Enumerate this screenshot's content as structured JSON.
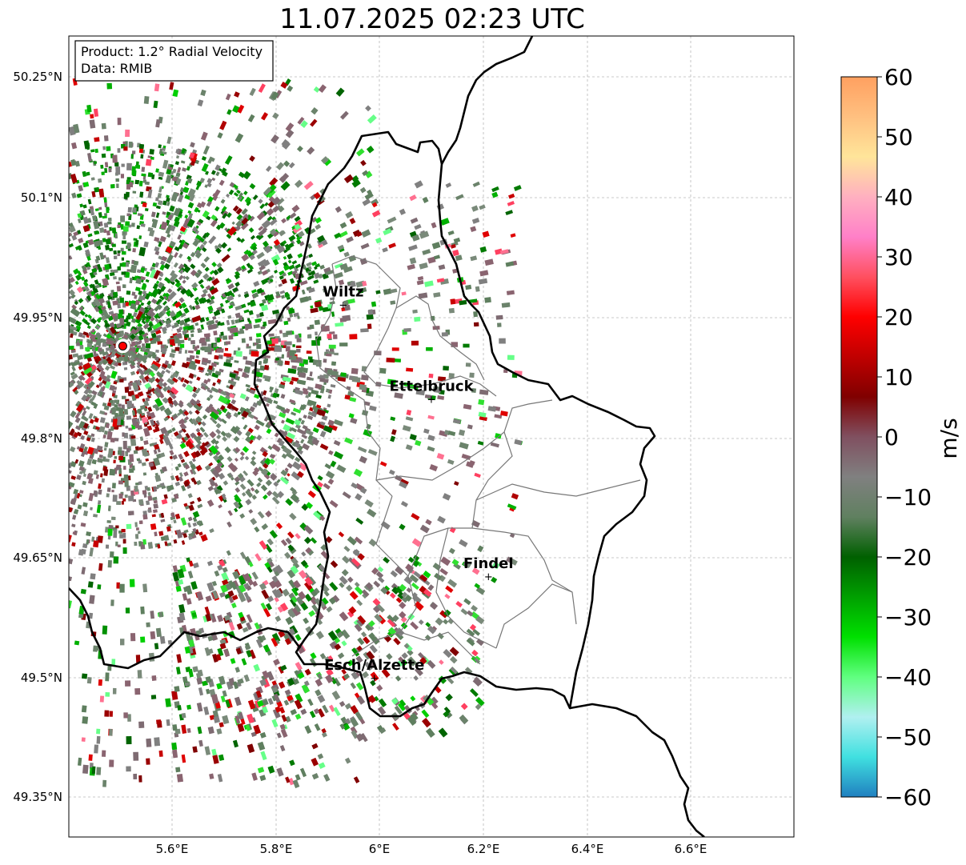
{
  "title": "11.07.2025 02:23 UTC",
  "info": {
    "product": "Product: 1.2° Radial Velocity",
    "source": "Data: RMIB"
  },
  "axes": {
    "lon_ticks": [
      "5.6°E",
      "5.8°E",
      "6°E",
      "6.2°E",
      "6.4°E",
      "6.6°E"
    ],
    "lat_ticks": [
      "50.25°N",
      "50.1°N",
      "49.95°N",
      "49.8°N",
      "49.65°N",
      "49.5°N",
      "49.35°N"
    ]
  },
  "cities": [
    {
      "name": "Wiltz",
      "lon": 5.93,
      "lat": 49.966
    },
    {
      "name": "Ettelbruck",
      "lon": 6.1,
      "lat": 49.848
    },
    {
      "name": "Findel",
      "lon": 6.21,
      "lat": 49.627
    },
    {
      "name": "Esch/Alzette",
      "lon": 5.99,
      "lat": 49.5
    }
  ],
  "radar_site": {
    "lon": 5.505,
    "lat": 49.914
  },
  "colorbar": {
    "label": "m/s",
    "ticks": [
      "60",
      "50",
      "40",
      "30",
      "20",
      "10",
      "0",
      "−10",
      "−20",
      "−30",
      "−40",
      "−50",
      "−60"
    ],
    "stops": [
      "#ffa060",
      "#ffc080",
      "#ffe59a",
      "#ffb0c0",
      "#ff80c8",
      "#ff5060",
      "#ff0000",
      "#c00000",
      "#800000",
      "#805060",
      "#808080",
      "#608060",
      "#006000",
      "#00a000",
      "#00e000",
      "#60ff80",
      "#b0f0f0",
      "#40e0e0",
      "#2080c0"
    ]
  },
  "colors": {
    "border": "#000000",
    "cantons": "#777777",
    "grid": "#b0b0b0",
    "radar_marker": "#ff0000"
  }
}
